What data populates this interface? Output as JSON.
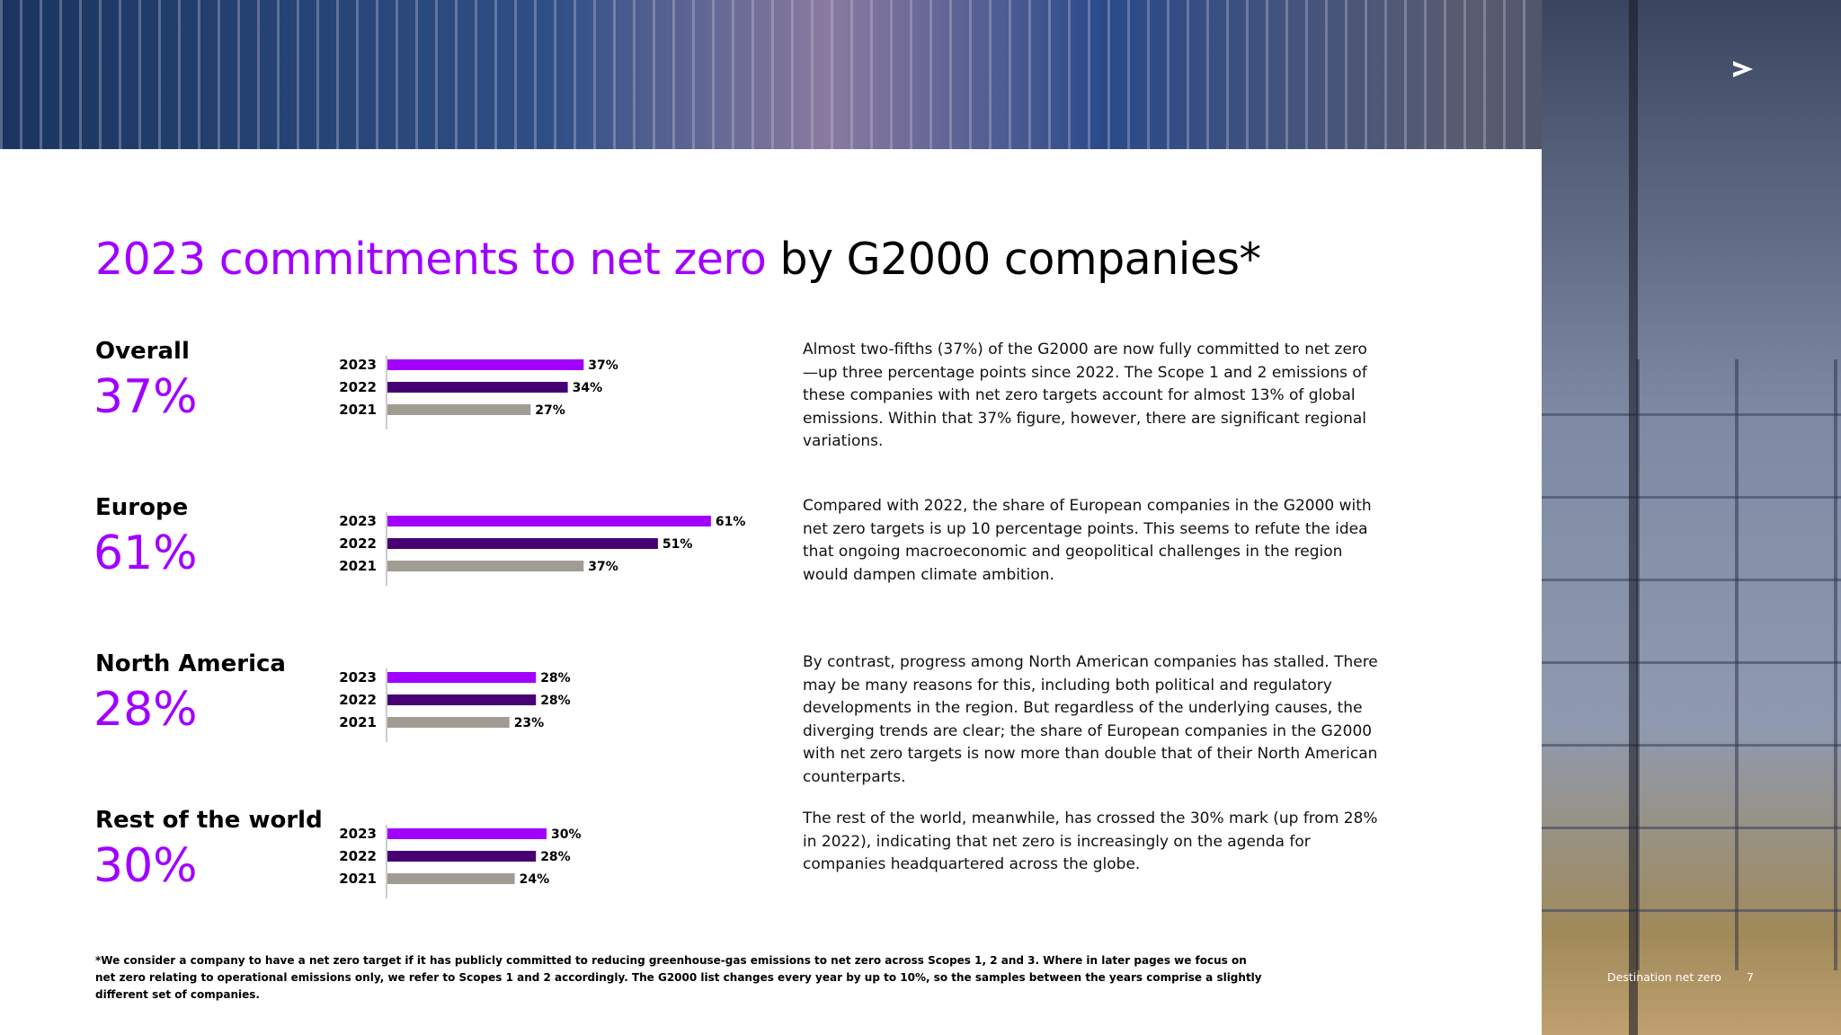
{
  "title_highlight": "2023 commitments to net zero",
  "title_rest": "by G2000 companies*",
  "chart_data": [
    {
      "type": "bar",
      "orientation": "horizontal",
      "title": "Overall",
      "headline": "37%",
      "categories": [
        "2023",
        "2022",
        "2021"
      ],
      "values": [
        37,
        34,
        27
      ],
      "value_labels": [
        "37%",
        "34%",
        "27%"
      ],
      "colors": [
        "#a100ff",
        "#460073",
        "#a09c93"
      ]
    },
    {
      "type": "bar",
      "orientation": "horizontal",
      "title": "Europe",
      "headline": "61%",
      "categories": [
        "2023",
        "2022",
        "2021"
      ],
      "values": [
        61,
        51,
        37
      ],
      "value_labels": [
        "61%",
        "51%",
        "37%"
      ],
      "colors": [
        "#a100ff",
        "#460073",
        "#a09c93"
      ]
    },
    {
      "type": "bar",
      "orientation": "horizontal",
      "title": "North America",
      "headline": "28%",
      "categories": [
        "2023",
        "2022",
        "2021"
      ],
      "values": [
        28,
        28,
        23
      ],
      "value_labels": [
        "28%",
        "28%",
        "23%"
      ],
      "colors": [
        "#a100ff",
        "#460073",
        "#a09c93"
      ]
    },
    {
      "type": "bar",
      "orientation": "horizontal",
      "title": "Rest of the world",
      "headline": "30%",
      "categories": [
        "2023",
        "2022",
        "2021"
      ],
      "values": [
        30,
        28,
        24
      ],
      "value_labels": [
        "30%",
        "28%",
        "24%"
      ],
      "colors": [
        "#a100ff",
        "#460073",
        "#a09c93"
      ]
    }
  ],
  "paragraphs": [
    "Almost two-fifths (37%) of the G2000 are now fully committed to net zero—up three percentage points since 2022. The Scope 1 and 2 emissions of these companies with net zero targets account for almost 13% of global emissions. Within that 37% figure, however, there are significant regional variations.",
    "Compared with 2022, the share of European companies in the G2000 with net zero targets is up 10 percentage points. This seems to refute the idea that ongoing macroeconomic and geopolitical challenges in the region would dampen climate ambition.",
    "By contrast, progress among North American companies has stalled. There may be many reasons for this, including both political and regulatory developments in the region. But regardless of the underlying causes, the diverging trends are clear; the share of European companies in the G2000 with net zero targets is now more than double that of their North American counterparts.",
    "The rest of the world, meanwhile, has crossed the 30% mark (up from 28% in 2022), indicating that net zero is increasingly on the agenda for companies headquartered across the globe."
  ],
  "footnote": "*We consider a company to have a net zero target if it has publicly committed to reducing greenhouse-gas emissions to net zero across Scopes 1, 2 and 3. Where in later pages we focus on net zero relating to operational emissions only, we refer to Scopes 1 and 2 accordingly. The G2000 list changes every year by up to 10%, so the samples between the years comprise a slightly different set of companies.",
  "footer": {
    "label": "Destination net zero",
    "page": "7"
  }
}
